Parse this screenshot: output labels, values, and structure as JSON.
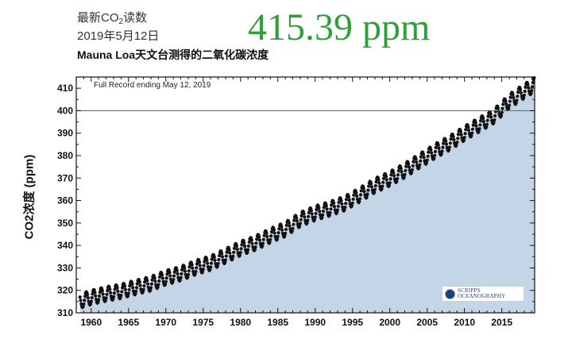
{
  "header": {
    "latest_label_prefix": "最新CO",
    "latest_label_sub": "2",
    "latest_label_suffix": "读数",
    "date": "2019年5月12日",
    "reading": "415.39 ppm"
  },
  "chart_data": {
    "type": "line",
    "title": "Mauna Loa天文台测得的二氧化碳浓度",
    "annotation": "Full Record ending May 12, 2019",
    "ylabel": "CO2浓度 (ppm)",
    "xlabel": "",
    "xlim": [
      1958,
      2019.4
    ],
    "ylim": [
      310,
      415
    ],
    "xticks": [
      1960,
      1965,
      1970,
      1975,
      1980,
      1985,
      1990,
      1995,
      2000,
      2005,
      2010,
      2015
    ],
    "yticks": [
      310,
      320,
      330,
      340,
      350,
      360,
      370,
      380,
      390,
      400,
      410
    ],
    "reference_line": {
      "y": 400,
      "color": "#2f9f3c"
    },
    "fill_color": "#c5d5e8",
    "series": [
      {
        "x": [
          1958.5,
          1960,
          1962,
          1964,
          1966,
          1968,
          1970,
          1972,
          1974,
          1976,
          1978,
          1980,
          1982,
          1984,
          1986,
          1988,
          1990,
          1992,
          1994,
          1996,
          1998,
          2000,
          2002,
          2004,
          2006,
          2008,
          2010,
          2012,
          2014,
          2016,
          2018,
          2019.36
        ],
        "values": [
          315.2,
          316.9,
          318.4,
          319.6,
          321.4,
          323.0,
          325.7,
          327.5,
          330.2,
          332.2,
          335.4,
          338.7,
          341.1,
          344.4,
          347.2,
          351.6,
          354.4,
          356.4,
          358.8,
          362.6,
          366.7,
          369.7,
          373.4,
          377.7,
          381.9,
          385.6,
          389.9,
          393.8,
          397.7,
          404.2,
          408.7,
          411.5
        ],
        "seasonal_amplitude_ppm": 3.2,
        "samples_per_year": 12
      }
    ],
    "grid": false,
    "logo": "SCRIPPS INSTITUTION OF OCEANOGRAPHY"
  }
}
